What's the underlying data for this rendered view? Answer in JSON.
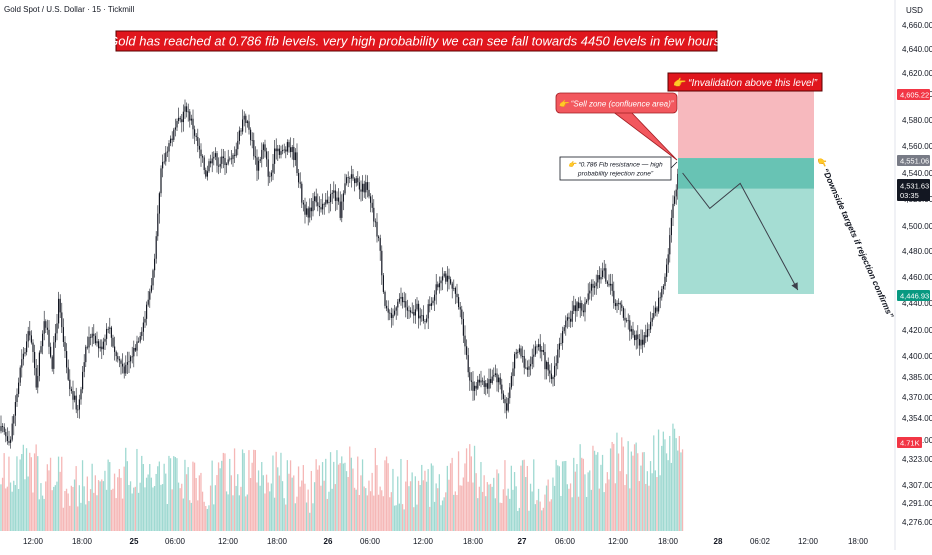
{
  "header": {
    "symbol": "Gold Spot / U.S. Dollar · 15 · Tickmill",
    "currency": "USD"
  },
  "headline": "Gold has reached at 0.786 fib levels. very high probability we can see fall towards 4450 levels in few hours.",
  "annotations": {
    "invalidation": "👉 “Invalidation above this level”",
    "sell_zone": "👉 “Sell zone (confluence area)”",
    "fib_line1": "👉 “0.786 Fib resistance — high",
    "fib_line2": "probability rejection zone”",
    "downside": "👉 “Downside targets if rejection confirms”"
  },
  "price_badges": {
    "upper": "4,605.22",
    "entry": "4,551.06",
    "current": "4,531.63",
    "countdown": "03:35",
    "target": "4,446.93",
    "volume": "4.71K"
  },
  "colors": {
    "up": "#26a69a",
    "down": "#ef5350",
    "candle": "#131722",
    "stop_zone": "#f7b9be",
    "target_zone": "#a5ddd3",
    "entry_band": "#68c3b4",
    "headline_bg": "#e0161d",
    "badge_red": "#f23645",
    "badge_gray": "#787b86",
    "badge_green": "#089981"
  },
  "chart_data": {
    "type": "candlestick",
    "y_axis": {
      "unit": "USD",
      "range": [
        4268,
        4680
      ],
      "ticks": [
        "4,660.00",
        "4,640.00",
        "4,620.00",
        "4,600.00",
        "4,580.00",
        "4,560.00",
        "4,540.00",
        "4,520.00",
        "4,500.00",
        "4,480.00",
        "4,460.00",
        "4,440.00",
        "4,420.00",
        "4,400.00",
        "4,385.00",
        "4,370.00",
        "4,354.00",
        "4,339.00",
        "4,323.00",
        "4,307.00",
        "4,291.00",
        "4,276.00"
      ]
    },
    "x_axis": {
      "ticks": [
        "12:00",
        "18:00",
        "25",
        "06:00",
        "12:00",
        "18:00",
        "26",
        "06:00",
        "12:00",
        "18:00",
        "27",
        "06:00",
        "12:00",
        "18:00",
        "28",
        "06:02",
        "12:00",
        "18:00"
      ],
      "bold_ticks": [
        "25",
        "26",
        "27",
        "28"
      ]
    },
    "price_path": [
      {
        "t": 0,
        "p": 4345
      },
      {
        "t": 6,
        "p": 4340
      },
      {
        "t": 12,
        "p": 4390
      },
      {
        "t": 18,
        "p": 4420
      },
      {
        "t": 22,
        "p": 4380
      },
      {
        "t": 27,
        "p": 4430
      },
      {
        "t": 32,
        "p": 4395
      },
      {
        "t": 36,
        "p": 4440
      },
      {
        "t": 42,
        "p": 4380
      },
      {
        "t": 48,
        "p": 4360
      },
      {
        "t": 52,
        "p": 4400
      },
      {
        "t": 57,
        "p": 4420
      },
      {
        "t": 62,
        "p": 4405
      },
      {
        "t": 67,
        "p": 4425
      },
      {
        "t": 72,
        "p": 4400
      },
      {
        "t": 78,
        "p": 4390
      },
      {
        "t": 84,
        "p": 4408
      },
      {
        "t": 90,
        "p": 4430
      },
      {
        "t": 96,
        "p": 4470
      },
      {
        "t": 100,
        "p": 4540
      },
      {
        "t": 104,
        "p": 4560
      },
      {
        "t": 108,
        "p": 4570
      },
      {
        "t": 112,
        "p": 4580
      },
      {
        "t": 116,
        "p": 4590
      },
      {
        "t": 120,
        "p": 4575
      },
      {
        "t": 124,
        "p": 4555
      },
      {
        "t": 128,
        "p": 4540
      },
      {
        "t": 132,
        "p": 4555
      },
      {
        "t": 136,
        "p": 4548
      },
      {
        "t": 140,
        "p": 4550
      },
      {
        "t": 144,
        "p": 4548
      },
      {
        "t": 148,
        "p": 4565
      },
      {
        "t": 152,
        "p": 4585
      },
      {
        "t": 156,
        "p": 4568
      },
      {
        "t": 160,
        "p": 4545
      },
      {
        "t": 164,
        "p": 4560
      },
      {
        "t": 168,
        "p": 4535
      },
      {
        "t": 172,
        "p": 4560
      },
      {
        "t": 176,
        "p": 4555
      },
      {
        "t": 180,
        "p": 4560
      },
      {
        "t": 184,
        "p": 4552
      },
      {
        "t": 188,
        "p": 4520
      },
      {
        "t": 192,
        "p": 4505
      },
      {
        "t": 196,
        "p": 4525
      },
      {
        "t": 200,
        "p": 4510
      },
      {
        "t": 204,
        "p": 4520
      },
      {
        "t": 208,
        "p": 4525
      },
      {
        "t": 212,
        "p": 4510
      },
      {
        "t": 216,
        "p": 4535
      },
      {
        "t": 220,
        "p": 4540
      },
      {
        "t": 224,
        "p": 4525
      },
      {
        "t": 228,
        "p": 4530
      },
      {
        "t": 232,
        "p": 4510
      },
      {
        "t": 236,
        "p": 4490
      },
      {
        "t": 240,
        "p": 4440
      },
      {
        "t": 244,
        "p": 4425
      },
      {
        "t": 248,
        "p": 4445
      },
      {
        "t": 252,
        "p": 4440
      },
      {
        "t": 256,
        "p": 4430
      },
      {
        "t": 260,
        "p": 4435
      },
      {
        "t": 264,
        "p": 4425
      },
      {
        "t": 268,
        "p": 4440
      },
      {
        "t": 272,
        "p": 4450
      },
      {
        "t": 276,
        "p": 4465
      },
      {
        "t": 280,
        "p": 4455
      },
      {
        "t": 284,
        "p": 4445
      },
      {
        "t": 288,
        "p": 4430
      },
      {
        "t": 292,
        "p": 4390
      },
      {
        "t": 296,
        "p": 4375
      },
      {
        "t": 300,
        "p": 4385
      },
      {
        "t": 304,
        "p": 4378
      },
      {
        "t": 308,
        "p": 4390
      },
      {
        "t": 312,
        "p": 4380
      },
      {
        "t": 316,
        "p": 4360
      },
      {
        "t": 320,
        "p": 4395
      },
      {
        "t": 324,
        "p": 4405
      },
      {
        "t": 328,
        "p": 4392
      },
      {
        "t": 332,
        "p": 4400
      },
      {
        "t": 336,
        "p": 4410
      },
      {
        "t": 340,
        "p": 4395
      },
      {
        "t": 344,
        "p": 4380
      },
      {
        "t": 348,
        "p": 4405
      },
      {
        "t": 352,
        "p": 4420
      },
      {
        "t": 356,
        "p": 4430
      },
      {
        "t": 360,
        "p": 4440
      },
      {
        "t": 364,
        "p": 4435
      },
      {
        "t": 368,
        "p": 4448
      },
      {
        "t": 372,
        "p": 4458
      },
      {
        "t": 376,
        "p": 4466
      },
      {
        "t": 380,
        "p": 4455
      },
      {
        "t": 384,
        "p": 4440
      },
      {
        "t": 388,
        "p": 4435
      },
      {
        "t": 392,
        "p": 4425
      },
      {
        "t": 396,
        "p": 4415
      },
      {
        "t": 400,
        "p": 4410
      },
      {
        "t": 404,
        "p": 4420
      },
      {
        "t": 408,
        "p": 4430
      },
      {
        "t": 412,
        "p": 4445
      },
      {
        "t": 416,
        "p": 4470
      },
      {
        "t": 420,
        "p": 4515
      },
      {
        "t": 423,
        "p": 4540
      },
      {
        "t": 426,
        "p": 4531
      }
    ],
    "projection_path": [
      {
        "t": 426,
        "p": 4540
      },
      {
        "t": 443,
        "p": 4513
      },
      {
        "t": 462,
        "p": 4532
      },
      {
        "t": 498,
        "p": 4450
      }
    ],
    "zones": {
      "stop": {
        "top": 4605.22,
        "bottom": 4551.06
      },
      "target": {
        "top": 4551.06,
        "bottom": 4446.93
      },
      "entry_band": [
        4528,
        4551.06
      ]
    }
  }
}
